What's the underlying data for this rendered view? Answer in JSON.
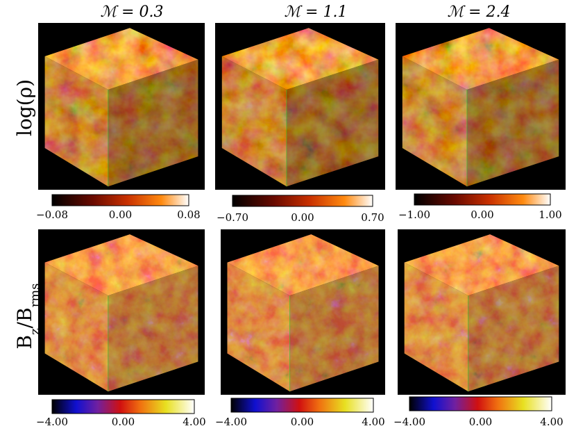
{
  "columns": [
    {
      "title": "ℳ = 0.3"
    },
    {
      "title": "ℳ = 1.1"
    },
    {
      "title": "ℳ = 2.4"
    }
  ],
  "rows": [
    {
      "label": "log(ρ)",
      "colorbars": [
        [
          "−0.08",
          "0.00",
          "0.08"
        ],
        [
          "−0.70",
          "0.00",
          "0.70"
        ],
        [
          "−1.00",
          "0.00",
          "1.00"
        ]
      ]
    },
    {
      "label_parts": [
        "B",
        "z",
        "/B",
        "rms"
      ],
      "colorbars": [
        [
          "−4.00",
          "0.00",
          "4.00"
        ],
        [
          "−4.00",
          "0.00",
          "4.00"
        ],
        [
          "−4.00",
          "0.00",
          "4.00"
        ]
      ]
    }
  ]
}
